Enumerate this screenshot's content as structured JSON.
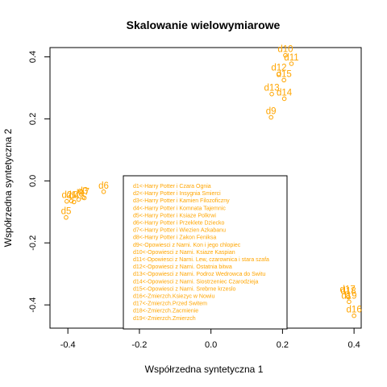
{
  "chart_data": {
    "type": "scatter",
    "title": "Skalowanie wielowymiarowe",
    "xlabel": "Współrzedna syntetyczna 1",
    "ylabel": "Współrzedna syntetyczna 2",
    "xlim": [
      -0.45,
      0.42
    ],
    "ylim": [
      -0.475,
      0.43
    ],
    "xticks": [
      -0.4,
      -0.2,
      0.0,
      0.2,
      0.4
    ],
    "xtick_labels": [
      "-0.4",
      "-0.2",
      "0.0",
      "0.2",
      "0.4"
    ],
    "yticks": [
      -0.4,
      -0.2,
      0.0,
      0.2,
      0.4
    ],
    "ytick_labels": [
      "-0.4",
      "-0.2",
      "0.0",
      "0.2",
      "0.4"
    ],
    "point_color": "#FFA500",
    "points": [
      {
        "label": "d1",
        "x": -0.39,
        "y": -0.065
      },
      {
        "label": "d2",
        "x": -0.403,
        "y": -0.066
      },
      {
        "label": "d3",
        "x": -0.358,
        "y": -0.053
      },
      {
        "label": "d4",
        "x": -0.383,
        "y": -0.068
      },
      {
        "label": "d5",
        "x": -0.405,
        "y": -0.118
      },
      {
        "label": "d6",
        "x": -0.3,
        "y": -0.035
      },
      {
        "label": "d7",
        "x": -0.354,
        "y": -0.055
      },
      {
        "label": "d8",
        "x": -0.37,
        "y": -0.06
      },
      {
        "label": "d9",
        "x": 0.168,
        "y": 0.205
      },
      {
        "label": "d10",
        "x": 0.208,
        "y": 0.405
      },
      {
        "label": "d11",
        "x": 0.225,
        "y": 0.378
      },
      {
        "label": "d12",
        "x": 0.19,
        "y": 0.345
      },
      {
        "label": "d13",
        "x": 0.17,
        "y": 0.28
      },
      {
        "label": "d14",
        "x": 0.205,
        "y": 0.265
      },
      {
        "label": "d15",
        "x": 0.204,
        "y": 0.325
      },
      {
        "label": "d16",
        "x": 0.4,
        "y": -0.435
      },
      {
        "label": "d17",
        "x": 0.382,
        "y": -0.37
      },
      {
        "label": "d18",
        "x": 0.384,
        "y": -0.375
      },
      {
        "label": "d19",
        "x": 0.386,
        "y": -0.39
      }
    ],
    "legend": {
      "placement": "bottom-center",
      "entries": [
        "d1<-Harry Potter i Czara Ognia",
        "d2<-Harry Potter i Insygnia Smierci",
        "d3<-Harry Potter i Kamien Filozoficzny",
        "d4<-Harry Potter i Komnata Tajemnic",
        "d5<-Harry Potter i Ksiaze Polkrwi",
        "d6<-Harry Potter i Przeklete Dziecko",
        "d7<-Harry Potter i Wiezien Azkabanu",
        "d8<-Harry Potter i Zakon Feniksa",
        "d9<-Opowiesci z Narni. Kon i jego chlopiec",
        "d10<-Opowiesci z Narni. Ksiaze Kaspian",
        "d11<-Opowiesci z Narni. Lew, czarownica i stara szafa",
        "d12<-Opowiesci z Narni. Ostatnia bitwa",
        "d13<-Opowiesci z Narni. Podroz Wedrowca do Switu",
        "d14<-Opowiesci z Narni. Siostrzeniec Czarodzieja",
        "d15<-Opowiesci z Narni. Srebrne krzeslo",
        "d16<-Zmierzch.Ksiezyc w Nowiu",
        "d17<-Zmierzch.Przed Switem",
        "d18<-Zmierzch.Zacmienie",
        "d19<-Zmierzch.Zmierzch"
      ]
    },
    "grid": false
  }
}
